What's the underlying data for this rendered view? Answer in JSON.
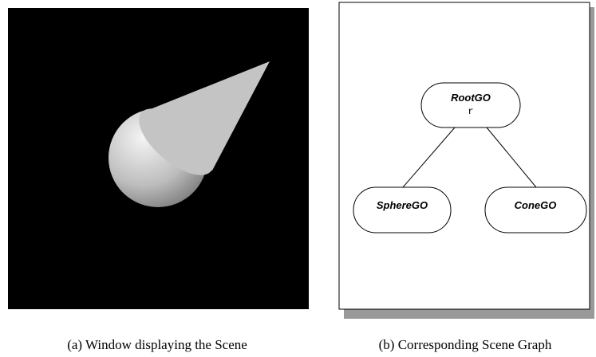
{
  "panels": {
    "a": {
      "caption": "(a) Window displaying the Scene"
    },
    "b": {
      "caption": "(b) Corresponding Scene Graph",
      "nodes": [
        {
          "label": "RootGO",
          "sublabel": "r"
        },
        {
          "label": "SphereGO"
        },
        {
          "label": "ConeGO"
        }
      ]
    }
  }
}
